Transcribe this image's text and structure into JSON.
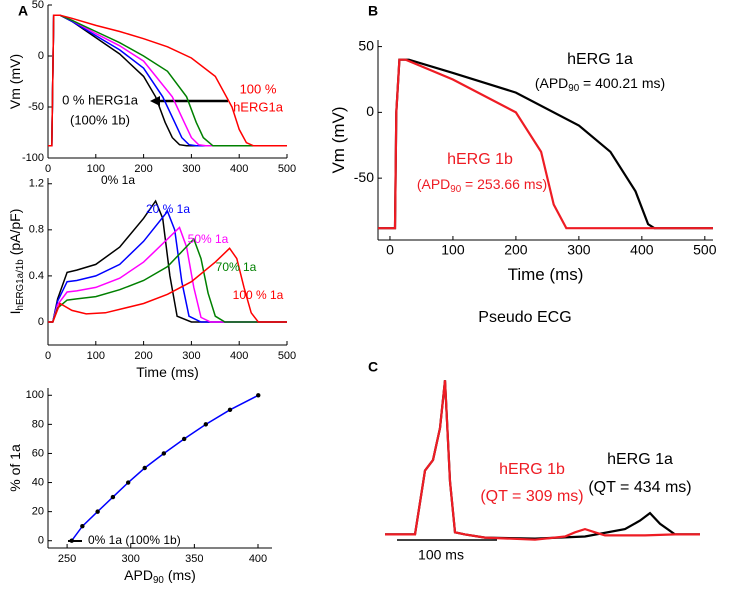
{
  "chart_data": [
    {
      "type": "line",
      "panel": "A",
      "ylabel": "Vm (mV)",
      "xlim": [
        0,
        500
      ],
      "ylim": [
        -100,
        50
      ],
      "xticks": [
        0,
        100,
        200,
        300,
        400,
        500
      ],
      "yticks": [
        -100,
        -50,
        0,
        50
      ],
      "series": [
        {
          "color": "#000000",
          "x": [
            0,
            8,
            12,
            25,
            50,
            100,
            150,
            200,
            225,
            245,
            260,
            275,
            290,
            500
          ],
          "values": [
            -88,
            -88,
            40,
            40,
            34,
            18,
            2,
            -20,
            -40,
            -65,
            -80,
            -87,
            -88,
            -88
          ]
        },
        {
          "color": "#0000ff",
          "x": [
            0,
            8,
            12,
            25,
            50,
            100,
            150,
            200,
            240,
            265,
            280,
            295,
            310,
            500
          ],
          "values": [
            -88,
            -88,
            40,
            40,
            34,
            20,
            6,
            -12,
            -40,
            -65,
            -80,
            -87,
            -88,
            -88
          ]
        },
        {
          "color": "#ff00ff",
          "x": [
            0,
            8,
            12,
            25,
            50,
            100,
            150,
            200,
            260,
            285,
            300,
            315,
            330,
            500
          ],
          "values": [
            -88,
            -88,
            40,
            40,
            35,
            22,
            10,
            -5,
            -40,
            -65,
            -80,
            -87,
            -88,
            -88
          ]
        },
        {
          "color": "#008000",
          "x": [
            0,
            8,
            12,
            25,
            50,
            100,
            150,
            200,
            250,
            290,
            310,
            325,
            345,
            500
          ],
          "values": [
            -88,
            -88,
            40,
            40,
            35,
            24,
            13,
            0,
            -15,
            -40,
            -65,
            -80,
            -88,
            -88
          ]
        },
        {
          "color": "#ff0000",
          "x": [
            0,
            8,
            12,
            25,
            50,
            100,
            150,
            200,
            250,
            300,
            350,
            385,
            400,
            415,
            430,
            500
          ],
          "values": [
            -88,
            -88,
            40,
            40,
            37,
            30,
            24,
            17,
            9,
            -2,
            -20,
            -50,
            -72,
            -85,
            -88,
            -88
          ]
        }
      ],
      "annotations": [
        {
          "text": "0 % hERG1a",
          "color": "#000000"
        },
        {
          "text": "(100% 1b)",
          "color": "#000000"
        },
        {
          "text": "100 %",
          "color": "#ff0000"
        },
        {
          "text": "hERG1a",
          "color": "#ff0000"
        }
      ]
    },
    {
      "type": "line",
      "xlabel": "Time (ms)",
      "ylabel": "I",
      "ylabel_sub": "hERG1a/1b",
      "ylabel_unit": "(pA/pF)",
      "xlim": [
        0,
        500
      ],
      "ylim": [
        -0.2,
        1.25
      ],
      "xticks": [
        0,
        100,
        200,
        300,
        400,
        500
      ],
      "yticks": [
        0,
        0.4,
        0.8,
        1.2
      ],
      "series": [
        {
          "color": "#000000",
          "x": [
            0,
            10,
            20,
            40,
            60,
            100,
            150,
            200,
            225,
            240,
            255,
            270,
            300,
            500
          ],
          "values": [
            0,
            0,
            0.2,
            0.43,
            0.45,
            0.5,
            0.65,
            0.9,
            1.05,
            0.9,
            0.4,
            0.05,
            0,
            0
          ]
        },
        {
          "color": "#0000ff",
          "x": [
            0,
            10,
            20,
            40,
            60,
            100,
            150,
            200,
            250,
            265,
            280,
            295,
            320,
            500
          ],
          "values": [
            0,
            0,
            0.18,
            0.35,
            0.36,
            0.4,
            0.5,
            0.7,
            0.96,
            0.8,
            0.35,
            0.05,
            0,
            0
          ]
        },
        {
          "color": "#ff00ff",
          "x": [
            0,
            10,
            20,
            40,
            60,
            100,
            150,
            200,
            275,
            290,
            305,
            320,
            340,
            500
          ],
          "values": [
            0,
            0,
            0.15,
            0.26,
            0.27,
            0.3,
            0.38,
            0.52,
            0.82,
            0.65,
            0.3,
            0.04,
            0,
            0
          ]
        },
        {
          "color": "#008000",
          "x": [
            0,
            10,
            20,
            40,
            60,
            100,
            150,
            200,
            250,
            305,
            320,
            335,
            350,
            370,
            500
          ],
          "values": [
            0,
            0,
            0.12,
            0.19,
            0.2,
            0.22,
            0.28,
            0.36,
            0.48,
            0.72,
            0.55,
            0.25,
            0.05,
            0,
            0
          ]
        },
        {
          "color": "#ff0000",
          "x": [
            0,
            10,
            25,
            50,
            80,
            120,
            200,
            250,
            300,
            350,
            380,
            395,
            410,
            425,
            440,
            500
          ],
          "values": [
            0,
            0,
            0.16,
            0.1,
            0.07,
            0.08,
            0.16,
            0.24,
            0.35,
            0.52,
            0.64,
            0.55,
            0.3,
            0.08,
            0,
            0
          ]
        }
      ],
      "annotations": [
        {
          "text": "0% 1a",
          "color": "#000000"
        },
        {
          "text": "20 % 1a",
          "color": "#0000ff"
        },
        {
          "text": "50% 1a",
          "color": "#ff00ff"
        },
        {
          "text": "70% 1a",
          "color": "#008000"
        },
        {
          "text": "100 % 1a",
          "color": "#ff0000"
        }
      ]
    },
    {
      "type": "scatter",
      "xlabel": "APD",
      "xlabel_sub": "90",
      "xlabel_unit": "(ms)",
      "ylabel": "% of 1a",
      "xlim": [
        235,
        411
      ],
      "ylim": [
        -5,
        105
      ],
      "xticks": [
        250,
        300,
        350,
        400
      ],
      "yticks": [
        0,
        20,
        40,
        60,
        80,
        100
      ],
      "series": [
        {
          "color": "#0000ff",
          "marker_color": "#000000",
          "x": [
            253.66,
            262,
            274,
            286,
            298,
            311,
            326,
            342,
            359,
            378,
            400.21
          ],
          "values": [
            0,
            10,
            20,
            30,
            40,
            50,
            60,
            70,
            80,
            90,
            100
          ]
        }
      ],
      "annotations": [
        {
          "text": "0% 1a (100% 1b)",
          "color": "#000000"
        }
      ]
    },
    {
      "type": "line",
      "panel": "B",
      "xlabel": "Time (ms)",
      "ylabel": "Vm (mV)",
      "xlim": [
        -19,
        513
      ],
      "ylim": [
        -97,
        55
      ],
      "xticks": [
        0,
        100,
        200,
        300,
        400,
        500
      ],
      "yticks": [
        -50,
        0,
        50
      ],
      "series": [
        {
          "color": "#000000",
          "x": [
            -19,
            8,
            10,
            15,
            30,
            100,
            200,
            300,
            350,
            390,
            410,
            420,
            513
          ],
          "values": [
            -88,
            -88,
            0,
            40,
            40,
            30,
            15,
            -10,
            -30,
            -60,
            -85,
            -88,
            -88
          ]
        },
        {
          "color": "#ee1c24",
          "x": [
            -19,
            8,
            10,
            15,
            25,
            100,
            200,
            240,
            260,
            280,
            513
          ],
          "values": [
            -88,
            -88,
            0,
            40,
            40,
            25,
            0,
            -30,
            -70,
            -88,
            -88
          ]
        }
      ],
      "annotations": [
        {
          "parts": [
            {
              "text": "hERG 1a"
            }
          ],
          "color": "#000000"
        },
        {
          "parts": [
            {
              "text": "(APD"
            },
            {
              "text": "90",
              "sub": true
            },
            {
              "text": " = 400.21 ms)"
            }
          ],
          "color": "#000000"
        },
        {
          "parts": [
            {
              "text": "hERG 1b"
            }
          ],
          "color": "#ee1c24"
        },
        {
          "parts": [
            {
              "text": "(APD"
            },
            {
              "text": "90",
              "sub": true
            },
            {
              "text": " = 253.66 ms)"
            }
          ],
          "color": "#ee1c24"
        }
      ]
    },
    {
      "type": "ecg",
      "panel": "C",
      "title": "Pseudo ECG",
      "xlim": [
        0,
        315
      ],
      "ylim": [
        -0.1,
        1.5
      ],
      "series": [
        {
          "color": "#000000",
          "x": [
            0,
            30,
            40,
            48,
            55,
            60,
            65,
            70,
            80,
            100,
            150,
            200,
            240,
            255,
            265,
            275,
            290,
            315
          ],
          "values": [
            0,
            0,
            0.6,
            0.7,
            1.0,
            1.45,
            0.5,
            0.02,
            0,
            -0.03,
            -0.04,
            -0.02,
            0.05,
            0.13,
            0.2,
            0.1,
            0,
            0
          ]
        },
        {
          "color": "#ee1c24",
          "x": [
            0,
            30,
            40,
            48,
            55,
            60,
            65,
            70,
            80,
            100,
            150,
            180,
            190,
            200,
            210,
            220,
            260,
            290,
            315
          ],
          "values": [
            0,
            0,
            0.6,
            0.7,
            1.0,
            1.45,
            0.5,
            0.02,
            0,
            -0.03,
            -0.05,
            -0.02,
            0.02,
            0.05,
            0.02,
            -0.01,
            -0.01,
            0,
            0
          ]
        }
      ],
      "scale_bar": {
        "value": 100,
        "label": "100 ms"
      },
      "annotations": [
        {
          "text": "hERG 1b",
          "color": "#ee1c24"
        },
        {
          "text": "(QT = 309 ms)",
          "color": "#ee1c24"
        },
        {
          "text": "hERG 1a",
          "color": "#000000"
        },
        {
          "text": "(QT = 434 ms)",
          "color": "#000000"
        }
      ]
    }
  ]
}
